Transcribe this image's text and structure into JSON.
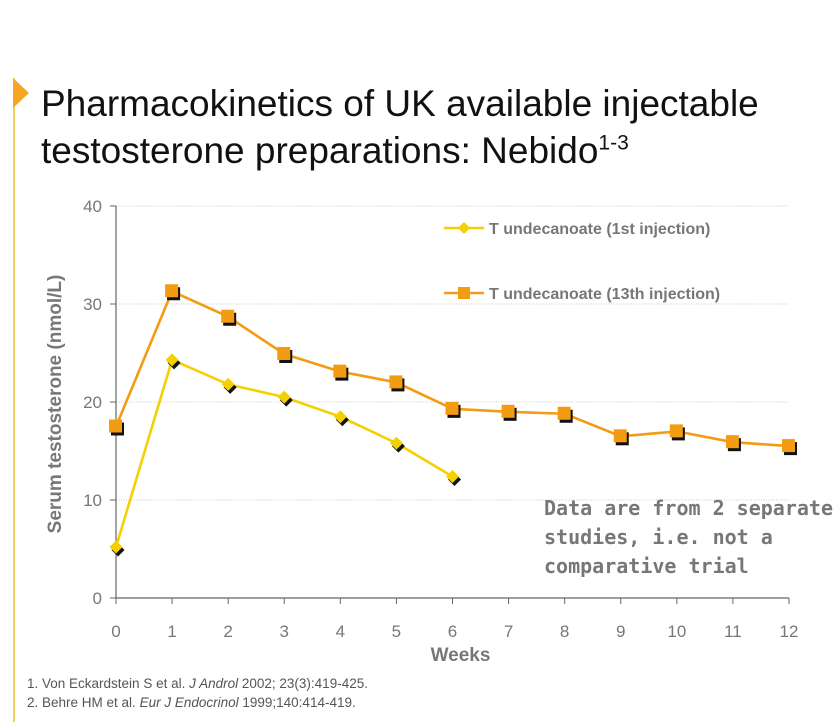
{
  "slide": {
    "title_main": "Pharmacokinetics of UK available injectable testosterone preparations:  Nebido",
    "title_sup": "1-3"
  },
  "note_lines": [
    "Data are from 2 separate",
    "studies, i.e. not a",
    "comparative trial"
  ],
  "references": [
    {
      "pre": "1. Von Eckardstein  S et al.  ",
      "journal": "J Androl",
      "post": " 2002; 23(3):419-425."
    },
    {
      "pre": "2. Behre HM et al. ",
      "journal": "Eur J Endocrinol",
      "post": " 1999;140:414-419."
    }
  ],
  "colors": {
    "series1": "#f5d000",
    "series2": "#f39c12",
    "marker_shadow": "#111111",
    "grid": "#bbbbbb",
    "axis": "#666666",
    "label": "#777777"
  },
  "chart_data": {
    "type": "line",
    "title": "",
    "xlabel": "Weeks",
    "ylabel": "Serum testosterone (nmol/L)",
    "xlim": [
      0,
      12
    ],
    "ylim": [
      0,
      40
    ],
    "x_ticks": [
      "0",
      "1",
      "2",
      "3",
      "4",
      "5",
      "6",
      "7",
      "8",
      "9",
      "10",
      "11",
      "12"
    ],
    "y_ticks": [
      "0",
      "10",
      "20",
      "30",
      "40"
    ],
    "grid": true,
    "legend_position": "top-right",
    "series": [
      {
        "name": "T undecanoate (1st injection)",
        "marker": "diamond",
        "x": [
          0,
          1,
          2,
          3,
          4,
          5,
          6
        ],
        "values": [
          5.2,
          24.3,
          21.8,
          20.5,
          18.5,
          15.8,
          12.4
        ]
      },
      {
        "name": "T undecanoate (13th injection)",
        "marker": "square",
        "x": [
          0,
          1,
          2,
          3,
          4,
          5,
          6,
          7,
          8,
          9,
          10,
          11,
          12
        ],
        "values": [
          17.5,
          31.3,
          28.7,
          24.9,
          23.1,
          22.0,
          19.3,
          19.0,
          18.8,
          16.5,
          17.0,
          15.9,
          15.5
        ]
      }
    ]
  }
}
